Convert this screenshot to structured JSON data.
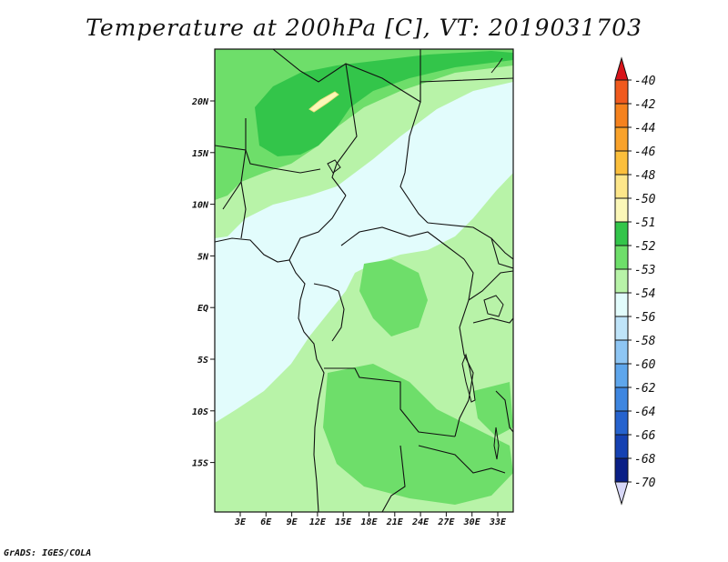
{
  "title": "Temperature at 200hPa [C], VT: 2019031703",
  "credit": "GrADS: IGES/COLA",
  "map": {
    "lon_ticks": [
      "3E",
      "6E",
      "9E",
      "12E",
      "15E",
      "18E",
      "21E",
      "24E",
      "27E",
      "30E",
      "33E"
    ],
    "lat_ticks": [
      "20N",
      "15N",
      "10N",
      "5N",
      "EQ",
      "5S",
      "10S",
      "15S"
    ]
  },
  "colorbar": {
    "levels": [
      {
        "label": "-40",
        "color": "#e8261a"
      },
      {
        "label": "-42",
        "color": "#f05a1e"
      },
      {
        "label": "-44",
        "color": "#f5821e"
      },
      {
        "label": "-46",
        "color": "#f9a22a"
      },
      {
        "label": "-48",
        "color": "#fbbf3c"
      },
      {
        "label": "-50",
        "color": "#fde68a"
      },
      {
        "label": "-51",
        "color": "#fbf7b8"
      },
      {
        "label": "-52",
        "color": "#33c54a"
      },
      {
        "label": "-53",
        "color": "#6ede6a"
      },
      {
        "label": "-54",
        "color": "#b8f3a8"
      },
      {
        "label": "-56",
        "color": "#e2fcfc"
      },
      {
        "label": "-58",
        "color": "#bfe4f9"
      },
      {
        "label": "-60",
        "color": "#8ec6f4"
      },
      {
        "label": "-62",
        "color": "#5ea6ec"
      },
      {
        "label": "-64",
        "color": "#3e86e0"
      },
      {
        "label": "-66",
        "color": "#2663ce"
      },
      {
        "label": "-68",
        "color": "#1541b2"
      },
      {
        "label": "-70",
        "color": "#0a1f86"
      }
    ],
    "low_end_color": "#d8d8f8",
    "high_end_color": "#d8141a"
  }
}
